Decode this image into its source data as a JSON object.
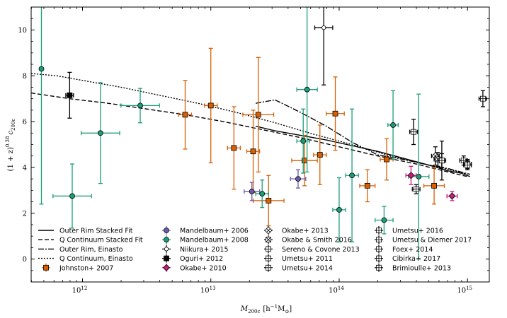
{
  "chart_data": {
    "type": "scatter",
    "xlabel_base": "M",
    "xlabel_sub": "200c",
    "xlabel_units": "[h",
    "xlabel_units_sup": "−1",
    "xlabel_units_end": "M",
    "xlabel_units_sub": "⊙",
    "xlabel_units_close": "]",
    "ylabel_base": "(1 + z)",
    "ylabel_sup": "0.38",
    "ylabel_var": "c",
    "ylabel_sub": "200c",
    "x_log_range": [
      11.6,
      15.17
    ],
    "ylim": [
      -1.0,
      11.0
    ],
    "x_ticks": [
      {
        "exp": 12,
        "base": "10",
        "sup": "12"
      },
      {
        "exp": 13,
        "base": "10",
        "sup": "13"
      },
      {
        "exp": 14,
        "base": "10",
        "sup": "14"
      },
      {
        "exp": 15,
        "base": "10",
        "sup": "15"
      }
    ],
    "y_ticks": [
      "0",
      "2",
      "4",
      "6",
      "8",
      "10"
    ],
    "lines": [
      {
        "name": "Outer Rim Stacked Fit",
        "dash": "none",
        "x": [
          13.35,
          13.5,
          13.7,
          13.9,
          14.1,
          14.3,
          14.5,
          14.7,
          14.85,
          14.95,
          15.02
        ],
        "y": [
          5.8,
          5.6,
          5.4,
          5.2,
          4.95,
          4.7,
          4.4,
          4.1,
          3.85,
          3.75,
          3.6
        ]
      },
      {
        "name": "Q Continuum Stacked Fit",
        "dash": "6,3",
        "x": [
          11.6,
          11.9,
          12.2,
          12.5,
          12.8,
          13.1,
          13.4,
          13.7,
          14.0,
          14.3,
          14.6,
          14.85,
          15.0
        ],
        "y": [
          7.25,
          7.0,
          6.8,
          6.55,
          6.3,
          6.0,
          5.65,
          5.3,
          4.9,
          4.5,
          4.15,
          3.8,
          3.6
        ]
      },
      {
        "name": "Outer Rim, Einasto",
        "dash": "8,2,2,2",
        "x": [
          13.35,
          13.5,
          13.7,
          13.9,
          14.1,
          14.3,
          14.5,
          14.7,
          14.85,
          14.95,
          15.02
        ],
        "y": [
          6.8,
          6.95,
          6.4,
          5.8,
          5.1,
          4.55,
          4.35,
          4.1,
          3.95,
          3.8,
          3.7
        ]
      },
      {
        "name": "Q Continuum, Einasto",
        "dash": "2,2",
        "x": [
          11.6,
          11.8,
          12.0,
          12.3,
          12.6,
          12.9,
          13.2,
          13.5,
          13.8,
          14.1,
          14.4,
          14.7,
          14.9,
          15.0
        ],
        "y": [
          8.1,
          8.0,
          7.8,
          7.5,
          7.15,
          6.8,
          6.4,
          5.95,
          5.45,
          5.0,
          4.5,
          4.1,
          3.85,
          3.7
        ]
      }
    ],
    "series": [
      {
        "name": "Johnston+ 2007",
        "marker": "square",
        "color": "#d95f02",
        "points": [
          {
            "x": 12.8,
            "y": 6.3,
            "xe": 0.05,
            "ye": 1.5
          },
          {
            "x": 13.0,
            "y": 6.7,
            "xe": 0.05,
            "ye": 2.5
          },
          {
            "x": 13.18,
            "y": 4.85,
            "xe": 0.05,
            "ye": 1.8
          },
          {
            "x": 13.33,
            "y": 4.7,
            "xe": 0.05,
            "ye": 1.8
          },
          {
            "x": 13.37,
            "y": 6.3,
            "xe": 0.12,
            "ye": 2.5
          },
          {
            "x": 13.45,
            "y": 2.55,
            "xe": 0.12,
            "ye": 1.1
          },
          {
            "x": 13.73,
            "y": 4.3,
            "xe": 0.1,
            "ye": 1.1
          },
          {
            "x": 13.85,
            "y": 4.55,
            "xe": 0.05,
            "ye": 1.3
          },
          {
            "x": 13.97,
            "y": 6.35,
            "xe": 0.07,
            "ye": 1.6
          },
          {
            "x": 14.22,
            "y": 3.2,
            "xe": 0.06,
            "ye": 0.7
          },
          {
            "x": 14.37,
            "y": 4.35,
            "xe": 0.05,
            "ye": 0.9
          },
          {
            "x": 14.74,
            "y": 3.2,
            "xe": 0.08,
            "ye": 0.8
          }
        ]
      },
      {
        "name": "Mandelbaum+ 2006",
        "marker": "circle",
        "color": "#6a5aa8",
        "points": [
          {
            "x": 13.32,
            "y": 2.95,
            "xe": 0.06,
            "ye": 0.4
          },
          {
            "x": 13.68,
            "y": 3.5,
            "xe": 0.06,
            "ye": 0.4
          }
        ]
      },
      {
        "name": "Mandelbaum+ 2008",
        "marker": "circle",
        "color": "#1b9e77",
        "points": [
          {
            "x": 11.68,
            "y": 8.3,
            "xe": 0.0,
            "ye": 5.9
          },
          {
            "x": 11.92,
            "y": 2.75,
            "xe": 0.15,
            "ye": 1.4
          },
          {
            "x": 12.14,
            "y": 5.5,
            "xe": 0.15,
            "ye": 2.2
          },
          {
            "x": 12.45,
            "y": 6.7,
            "xe": 0.15,
            "ye": 0.75
          },
          {
            "x": 13.4,
            "y": 2.85,
            "xe": 0.05,
            "ye": 0.6
          },
          {
            "x": 13.72,
            "y": 5.15,
            "xe": 0.05,
            "ye": 1.4
          },
          {
            "x": 13.75,
            "y": 7.4,
            "xe": 0.08,
            "ye": 3.6
          },
          {
            "x": 14.0,
            "y": 2.15,
            "xe": 0.05,
            "ye": 1.4
          },
          {
            "x": 14.1,
            "y": 3.65,
            "xe": 0.05,
            "ye": 2.9
          },
          {
            "x": 14.35,
            "y": 1.7,
            "xe": 0.07,
            "ye": 0.6
          },
          {
            "x": 14.42,
            "y": 5.85,
            "xe": 0.04,
            "ye": 1.5
          },
          {
            "x": 14.62,
            "y": 3.6,
            "xe": 0.08,
            "ye": 3.6
          }
        ]
      },
      {
        "name": "Niikura+ 2015",
        "marker": "smallcircle",
        "color": "#000000",
        "points": [
          {
            "x": 13.88,
            "y": 10.1,
            "xe": 0.07,
            "ye": 2.5
          }
        ]
      },
      {
        "name": "Oguri+ 2012",
        "marker": "square",
        "color": "#000000",
        "points": [
          {
            "x": 11.9,
            "y": 7.15,
            "xe": 0.03,
            "ye": 1.0
          }
        ]
      },
      {
        "name": "Okabe+ 2010",
        "marker": "diamond",
        "color": "#c51b7d",
        "points": [
          {
            "x": 14.56,
            "y": 3.65,
            "xe": 0.04,
            "ye": 0.4
          },
          {
            "x": 14.88,
            "y": 2.75,
            "xe": 0.04,
            "ye": 0.2
          }
        ]
      },
      {
        "name": "Okabe+ 2013",
        "marker": "xdiamond",
        "color": "#000000",
        "points": [
          {
            "x": 14.75,
            "y": 4.5,
            "xe": 0.03,
            "ye": 0.4
          }
        ]
      },
      {
        "name": "Okabe & Smith 2016",
        "marker": "xsquare",
        "color": "#000000",
        "points": [
          {
            "x": 14.77,
            "y": 4.35,
            "xe": 0.03,
            "ye": 0.3
          }
        ]
      },
      {
        "name": "Sereno & Covone 2013",
        "marker": "plussquare",
        "color": "#000000",
        "points": [
          {
            "x": 14.8,
            "y": 4.3,
            "xe": 0.03,
            "ye": 0.85
          }
        ]
      },
      {
        "name": "Umetsu+ 2011",
        "marker": "plussquare",
        "color": "#000000",
        "points": [
          {
            "x": 14.58,
            "y": 5.55,
            "xe": 0.03,
            "ye": 0.55
          }
        ]
      },
      {
        "name": "Umetsu+ 2014",
        "marker": "plussquare",
        "color": "#000000",
        "points": [
          {
            "x": 14.6,
            "y": 3.05,
            "xe": 0.03,
            "ye": 0.2
          }
        ]
      },
      {
        "name": "Umetsu+ 2016",
        "marker": "plussquare",
        "color": "#000000",
        "points": [
          {
            "x": 14.97,
            "y": 4.3,
            "xe": 0.03,
            "ye": 0.2
          }
        ]
      },
      {
        "name": "Umetsu & Diemer 2017",
        "marker": "plussquare",
        "color": "#000000",
        "points": [
          {
            "x": 15.0,
            "y": 4.15,
            "xe": 0.03,
            "ye": 0.2
          }
        ]
      },
      {
        "name": "Foex+ 2014",
        "marker": "plussquare",
        "color": "#000000",
        "points": [
          {
            "x": 14.8,
            "y": 4.3,
            "xe": 0.03,
            "ye": 0.3
          }
        ]
      },
      {
        "name": "Cibirka+ 2017",
        "marker": "plussquare",
        "color": "#000000",
        "points": [
          {
            "x": 15.12,
            "y": 7.0,
            "xe": 0.03,
            "ye": 0.35
          }
        ]
      },
      {
        "name": "Brimioulle+ 2013",
        "marker": "plussquare",
        "color": "#000000",
        "points": [
          {
            "x": 15.0,
            "y": 4.1,
            "xe": 0.03,
            "ye": 0.2
          }
        ]
      }
    ],
    "legend_line_entries": [
      "Outer Rim Stacked Fit",
      "Q Continuum Stacked Fit",
      "Outer Rim, Einasto",
      "Q Continuum, Einasto"
    ],
    "legend_columns": [
      [
        "Outer Rim Stacked Fit",
        "Q Continuum Stacked Fit",
        "Outer Rim, Einasto",
        "Q Continuum, Einasto",
        "Johnston+ 2007"
      ],
      [
        "Mandelbaum+ 2006",
        "Mandelbaum+ 2008",
        "Niikura+ 2015",
        "Oguri+ 2012",
        "Okabe+ 2010"
      ],
      [
        "Okabe+ 2013",
        "Okabe & Smith 2016",
        "Sereno & Covone 2013",
        "Umetsu+ 2011",
        "Umetsu+ 2014"
      ],
      [
        "Umetsu+ 2016",
        "Umetsu & Diemer 2017",
        "Foex+ 2014",
        "Cibirka+ 2017",
        "Brimioulle+ 2013"
      ]
    ]
  }
}
